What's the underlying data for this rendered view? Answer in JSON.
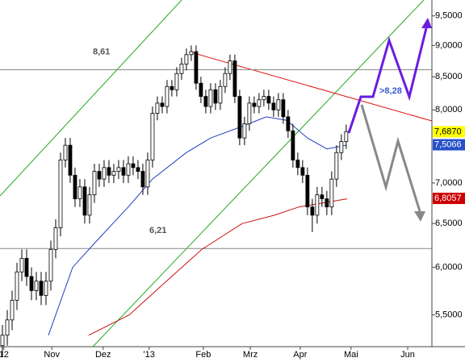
{
  "chart_data": {
    "type": "candlestick",
    "log_scale": true,
    "open": [
      5.2,
      5.3,
      5.45,
      5.65,
      5.95,
      6.1,
      5.9,
      5.75,
      5.85,
      5.7,
      5.85,
      6.2,
      6.45,
      7.3,
      7.5,
      7.1,
      6.8,
      6.95,
      6.6,
      6.85,
      7.15,
      7.05,
      7.2,
      7.1,
      7.15,
      7.2,
      7.1,
      7.25,
      7.2,
      7.15,
      6.95,
      7.3,
      7.95,
      8.1,
      8.05,
      8.35,
      8.3,
      8.55,
      8.7,
      8.85,
      8.9,
      8.4,
      8.2,
      8.05,
      8.3,
      8.1,
      8.35,
      8.55,
      8.75,
      8.2,
      7.6,
      7.8,
      8.1,
      8.05,
      8.15,
      8.2,
      8.1,
      8.0,
      8.15,
      7.9,
      7.7,
      7.3,
      7.2,
      7.1,
      6.7,
      6.6,
      6.85,
      6.8,
      6.7,
      7.05,
      7.4,
      7.55
    ],
    "close": [
      5.3,
      5.45,
      5.65,
      5.95,
      6.1,
      5.9,
      5.75,
      5.85,
      5.7,
      5.85,
      6.2,
      6.45,
      7.3,
      7.5,
      7.1,
      6.8,
      6.95,
      6.6,
      6.85,
      7.15,
      7.05,
      7.2,
      7.1,
      7.15,
      7.2,
      7.1,
      7.25,
      7.2,
      7.15,
      6.95,
      7.3,
      7.95,
      8.1,
      8.05,
      8.35,
      8.3,
      8.55,
      8.7,
      8.85,
      8.9,
      8.4,
      8.2,
      8.05,
      8.3,
      8.1,
      8.35,
      8.55,
      8.75,
      8.2,
      7.6,
      7.8,
      8.1,
      8.05,
      8.15,
      8.2,
      8.1,
      8.0,
      8.15,
      7.9,
      7.7,
      7.3,
      7.2,
      7.1,
      6.7,
      6.6,
      6.85,
      6.8,
      6.7,
      7.05,
      7.4,
      7.55,
      7.69
    ],
    "high": [
      5.4,
      5.55,
      5.75,
      6.05,
      6.2,
      6.2,
      6.0,
      5.95,
      5.95,
      5.95,
      6.3,
      6.55,
      7.4,
      7.6,
      7.6,
      7.2,
      7.05,
      7.05,
      6.95,
      7.25,
      7.25,
      7.3,
      7.3,
      7.25,
      7.3,
      7.3,
      7.35,
      7.35,
      7.3,
      7.25,
      7.4,
      8.05,
      8.2,
      8.2,
      8.45,
      8.45,
      8.65,
      8.8,
      8.95,
      9.0,
      9.0,
      8.5,
      8.3,
      8.4,
      8.4,
      8.45,
      8.65,
      8.85,
      8.85,
      8.3,
      7.9,
      8.2,
      8.2,
      8.25,
      8.3,
      8.3,
      8.2,
      8.25,
      8.25,
      8.0,
      7.8,
      7.4,
      7.3,
      7.2,
      6.8,
      6.95,
      6.95,
      6.9,
      7.15,
      7.5,
      7.65,
      7.79
    ],
    "low": [
      5.1,
      5.2,
      5.35,
      5.55,
      5.85,
      5.8,
      5.65,
      5.65,
      5.6,
      5.6,
      5.75,
      6.1,
      6.35,
      7.2,
      7.0,
      6.7,
      6.7,
      6.5,
      6.5,
      6.75,
      6.95,
      6.95,
      7.0,
      7.0,
      7.05,
      7.0,
      7.0,
      7.1,
      7.05,
      6.85,
      6.85,
      7.2,
      7.85,
      7.95,
      7.95,
      8.2,
      8.2,
      8.45,
      8.6,
      8.75,
      8.3,
      8.1,
      7.95,
      7.95,
      8.0,
      8.0,
      8.25,
      8.45,
      8.1,
      7.5,
      7.5,
      7.7,
      7.95,
      7.95,
      8.05,
      8.0,
      7.9,
      7.9,
      7.8,
      7.6,
      7.2,
      7.1,
      7.0,
      6.6,
      6.4,
      6.5,
      6.7,
      6.6,
      6.6,
      6.95,
      7.3,
      7.45
    ],
    "xlim": [
      -0.5,
      88.7
    ],
    "ylim": [
      5.19,
      9.78
    ],
    "yticks": [
      {
        "value": 5.5,
        "label": "5,5000"
      },
      {
        "value": 6,
        "label": "6,0000"
      },
      {
        "value": 6.5,
        "label": "6,5000"
      },
      {
        "value": 7,
        "label": "7,0000"
      },
      {
        "value": 8,
        "label": "8,0000"
      },
      {
        "value": 8.5,
        "label": "8,5000"
      },
      {
        "value": 9,
        "label": "9,0000"
      },
      {
        "value": 9.5,
        "label": "9,5000"
      }
    ],
    "xticks": [
      {
        "value": 0.3,
        "label": "12"
      },
      {
        "value": 10.2,
        "label": "Nov"
      },
      {
        "value": 20.8,
        "label": "Dez"
      },
      {
        "value": 30.3,
        "label": "'13"
      },
      {
        "value": 41.5,
        "label": "Feb"
      },
      {
        "value": 51.2,
        "label": "Mrz"
      },
      {
        "value": 61.5,
        "label": "Apr"
      },
      {
        "value": 72,
        "label": "Mai"
      },
      {
        "value": 83.7,
        "label": "Jun"
      }
    ],
    "overlays": [
      {
        "color": "#2040c0",
        "x": [
          9.5,
          14.5,
          19.5,
          26,
          31,
          38,
          43,
          49,
          54.5,
          58.7,
          63,
          67,
          71
        ],
        "values": [
          5.3,
          6.0,
          6.3,
          6.7,
          7.05,
          7.4,
          7.6,
          7.75,
          7.9,
          7.85,
          7.6,
          7.45,
          7.5
        ]
      },
      {
        "color": "#cc1010",
        "x": [
          17.8,
          26.2,
          32.8,
          41.2,
          49.5,
          56.2,
          61.2,
          66.2,
          71.2
        ],
        "values": [
          5.3,
          5.5,
          5.8,
          6.2,
          6.5,
          6.6,
          6.7,
          6.75,
          6.8
        ]
      }
    ],
    "hlines": [
      {
        "value": 8.61,
        "label": "8,61"
      },
      {
        "value": 6.21,
        "label": "6,21"
      }
    ],
    "target": {
      "value": 8.28,
      "label": ">8,28"
    },
    "price_labels": [
      {
        "value": 7.687,
        "label": "7,6870",
        "color": "#ffff00",
        "text_color": "#000000"
      },
      {
        "value": 7.5066,
        "label": "7,5066",
        "color": "#2850c8",
        "text_color": "#ffffff"
      },
      {
        "value": 6.8057,
        "label": "6,8057",
        "color": "#cc0000",
        "text_color": "#ffffff"
      }
    ]
  }
}
